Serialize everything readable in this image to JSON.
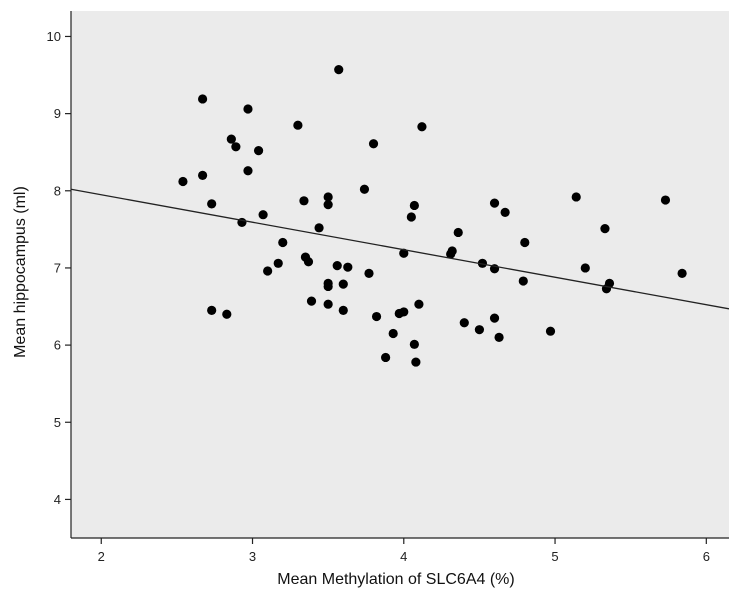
{
  "chart_data": {
    "type": "scatter",
    "title": "",
    "xlabel": "Mean Methylation of SLC6A4 (%)",
    "ylabel": "Mean hippocampus (ml)",
    "xlim": [
      1.8,
      6.15
    ],
    "ylim": [
      3.5,
      10.33
    ],
    "xticks": [
      2,
      3,
      4,
      5,
      6
    ],
    "yticks": [
      4,
      5,
      6,
      7,
      8,
      9,
      10
    ],
    "grid": false,
    "legend": "none",
    "background_color": "#ebebeb",
    "point_color": "#000000",
    "line_color": "#222222",
    "points": [
      {
        "x": 2.54,
        "y": 8.12
      },
      {
        "x": 2.67,
        "y": 9.19
      },
      {
        "x": 2.67,
        "y": 8.2
      },
      {
        "x": 2.73,
        "y": 7.83
      },
      {
        "x": 2.73,
        "y": 6.45
      },
      {
        "x": 2.83,
        "y": 6.4
      },
      {
        "x": 2.86,
        "y": 8.67
      },
      {
        "x": 2.89,
        "y": 8.57
      },
      {
        "x": 2.93,
        "y": 7.59
      },
      {
        "x": 2.97,
        "y": 9.06
      },
      {
        "x": 2.97,
        "y": 8.26
      },
      {
        "x": 3.04,
        "y": 8.52
      },
      {
        "x": 3.07,
        "y": 7.69
      },
      {
        "x": 3.1,
        "y": 6.96
      },
      {
        "x": 3.17,
        "y": 7.06
      },
      {
        "x": 3.2,
        "y": 7.33
      },
      {
        "x": 3.3,
        "y": 8.85
      },
      {
        "x": 3.34,
        "y": 7.87
      },
      {
        "x": 3.35,
        "y": 7.14
      },
      {
        "x": 3.37,
        "y": 7.08
      },
      {
        "x": 3.39,
        "y": 6.57
      },
      {
        "x": 3.44,
        "y": 7.52
      },
      {
        "x": 3.5,
        "y": 7.92
      },
      {
        "x": 3.5,
        "y": 7.82
      },
      {
        "x": 3.5,
        "y": 6.8
      },
      {
        "x": 3.5,
        "y": 6.76
      },
      {
        "x": 3.5,
        "y": 6.53
      },
      {
        "x": 3.56,
        "y": 7.03
      },
      {
        "x": 3.57,
        "y": 9.57
      },
      {
        "x": 3.6,
        "y": 6.79
      },
      {
        "x": 3.6,
        "y": 6.45
      },
      {
        "x": 3.63,
        "y": 7.01
      },
      {
        "x": 3.74,
        "y": 8.02
      },
      {
        "x": 3.77,
        "y": 6.93
      },
      {
        "x": 3.8,
        "y": 8.61
      },
      {
        "x": 3.82,
        "y": 6.37
      },
      {
        "x": 3.88,
        "y": 5.84
      },
      {
        "x": 3.93,
        "y": 6.15
      },
      {
        "x": 3.97,
        "y": 6.41
      },
      {
        "x": 4.0,
        "y": 7.19
      },
      {
        "x": 4.0,
        "y": 6.43
      },
      {
        "x": 4.05,
        "y": 7.66
      },
      {
        "x": 4.07,
        "y": 7.81
      },
      {
        "x": 4.07,
        "y": 6.01
      },
      {
        "x": 4.08,
        "y": 5.78
      },
      {
        "x": 4.1,
        "y": 6.53
      },
      {
        "x": 4.12,
        "y": 8.83
      },
      {
        "x": 4.31,
        "y": 7.18
      },
      {
        "x": 4.32,
        "y": 7.22
      },
      {
        "x": 4.36,
        "y": 7.46
      },
      {
        "x": 4.4,
        "y": 6.29
      },
      {
        "x": 4.5,
        "y": 6.2
      },
      {
        "x": 4.52,
        "y": 7.06
      },
      {
        "x": 4.6,
        "y": 7.84
      },
      {
        "x": 4.6,
        "y": 6.99
      },
      {
        "x": 4.6,
        "y": 6.35
      },
      {
        "x": 4.63,
        "y": 6.1
      },
      {
        "x": 4.67,
        "y": 7.72
      },
      {
        "x": 4.79,
        "y": 6.83
      },
      {
        "x": 4.8,
        "y": 7.33
      },
      {
        "x": 4.97,
        "y": 6.18
      },
      {
        "x": 5.14,
        "y": 7.92
      },
      {
        "x": 5.2,
        "y": 7.0
      },
      {
        "x": 5.33,
        "y": 7.51
      },
      {
        "x": 5.34,
        "y": 6.73
      },
      {
        "x": 5.36,
        "y": 6.8
      },
      {
        "x": 5.73,
        "y": 7.88
      },
      {
        "x": 5.84,
        "y": 6.93
      }
    ],
    "fit_line": {
      "x": [
        1.8,
        6.15
      ],
      "y": [
        8.02,
        6.47
      ]
    }
  }
}
